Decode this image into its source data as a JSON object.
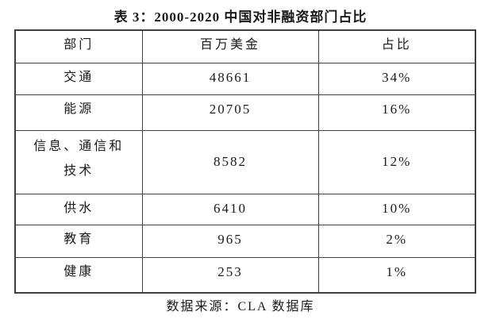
{
  "page": {
    "caption": "表 3：2000-2020 中国对非融资部门占比",
    "source_note": "数据来源：CLA 数据库"
  },
  "table": {
    "columns": [
      "部门",
      "百万美金",
      "占比"
    ],
    "rows": [
      {
        "sector": "交通",
        "amount": "48661",
        "share": "34%"
      },
      {
        "sector": "能源",
        "amount": "20705",
        "share": "16%"
      },
      {
        "sector": "信息、通信和\n技术",
        "amount": "8582",
        "share": "12%"
      },
      {
        "sector": "供水",
        "amount": "6410",
        "share": "10%"
      },
      {
        "sector": "教育",
        "amount": "965",
        "share": "2%"
      },
      {
        "sector": "健康",
        "amount": "253",
        "share": "1%"
      }
    ]
  },
  "colors": {
    "text": "#1a1a1a",
    "border": "#3f3f3f",
    "background": "#ffffff"
  }
}
